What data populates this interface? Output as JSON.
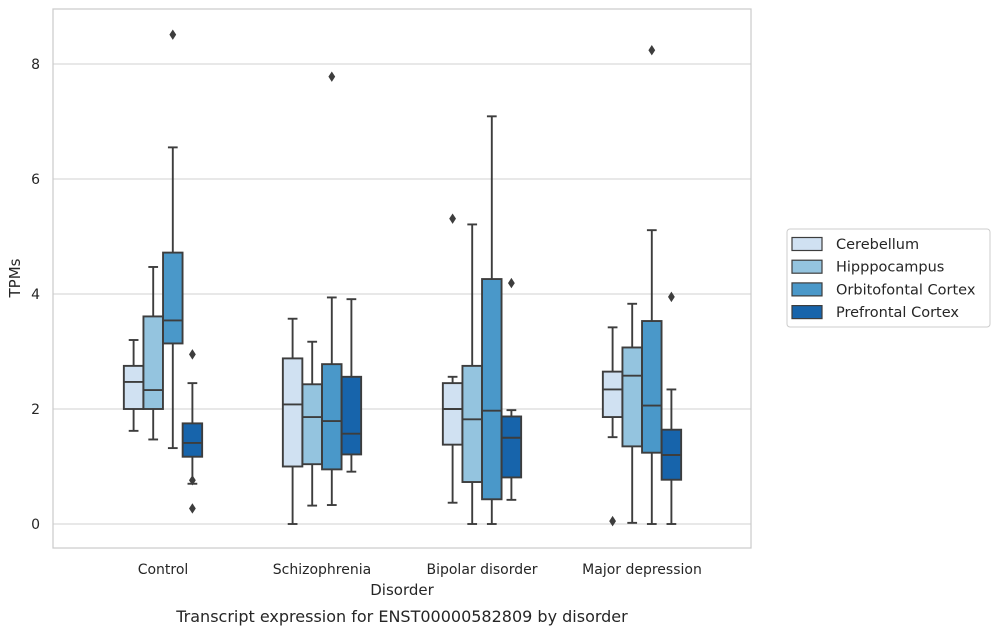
{
  "chart_data": {
    "type": "box",
    "xlabel": "Disorder",
    "ylabel": "TPMs",
    "caption": "Transcript expression for ENST00000582809 by disorder",
    "ylim": [
      -0.4,
      8.95
    ],
    "yticks": [
      0,
      2,
      4,
      6,
      8
    ],
    "categories": [
      "Control",
      "Schizophrenia",
      "Bipolar disorder",
      "Major depression"
    ],
    "grid": "horizontal",
    "legend_position": "right",
    "series": [
      {
        "name": "Cerebellum",
        "color": "#d0e1f2",
        "boxes": [
          {
            "whislo": 1.62,
            "q1": 2.0,
            "med": 2.47,
            "q3": 2.75,
            "whishi": 3.2,
            "fliers": []
          },
          {
            "whislo": 0.0,
            "q1": 1.0,
            "med": 2.08,
            "q3": 2.88,
            "whishi": 3.57,
            "fliers": []
          },
          {
            "whislo": 0.37,
            "q1": 1.38,
            "med": 2.0,
            "q3": 2.45,
            "whishi": 2.56,
            "fliers": [
              5.31
            ]
          },
          {
            "whislo": 1.51,
            "q1": 1.86,
            "med": 2.34,
            "q3": 2.65,
            "whishi": 3.42,
            "fliers": [
              0.05
            ]
          }
        ]
      },
      {
        "name": "Hipppocampus",
        "color": "#94c4df",
        "boxes": [
          {
            "whislo": 1.47,
            "q1": 2.0,
            "med": 2.33,
            "q3": 3.61,
            "whishi": 4.47,
            "fliers": []
          },
          {
            "whislo": 0.32,
            "q1": 1.04,
            "med": 1.86,
            "q3": 2.43,
            "whishi": 3.17,
            "fliers": []
          },
          {
            "whislo": 0.0,
            "q1": 0.73,
            "med": 1.82,
            "q3": 2.75,
            "whishi": 5.21,
            "fliers": []
          },
          {
            "whislo": 0.02,
            "q1": 1.35,
            "med": 2.58,
            "q3": 3.07,
            "whishi": 3.83,
            "fliers": []
          }
        ]
      },
      {
        "name": "Orbitofontal Cortex",
        "color": "#4a98c9",
        "boxes": [
          {
            "whislo": 1.32,
            "q1": 3.14,
            "med": 3.54,
            "q3": 4.72,
            "whishi": 6.55,
            "fliers": [
              8.51
            ]
          },
          {
            "whislo": 0.33,
            "q1": 0.95,
            "med": 1.79,
            "q3": 2.78,
            "whishi": 3.94,
            "fliers": [
              7.78
            ]
          },
          {
            "whislo": 0.0,
            "q1": 0.43,
            "med": 1.97,
            "q3": 4.26,
            "whishi": 7.09,
            "fliers": []
          },
          {
            "whislo": 0.0,
            "q1": 1.24,
            "med": 2.06,
            "q3": 3.53,
            "whishi": 5.11,
            "fliers": [
              8.24
            ]
          }
        ]
      },
      {
        "name": "Prefrontal Cortex",
        "color": "#1764ab",
        "boxes": [
          {
            "whislo": 0.7,
            "q1": 1.17,
            "med": 1.41,
            "q3": 1.75,
            "whishi": 2.45,
            "fliers": [
              2.95,
              0.76,
              0.27
            ]
          },
          {
            "whislo": 0.91,
            "q1": 1.21,
            "med": 1.57,
            "q3": 2.56,
            "whishi": 3.91,
            "fliers": []
          },
          {
            "whislo": 0.42,
            "q1": 0.81,
            "med": 1.5,
            "q3": 1.87,
            "whishi": 1.98,
            "fliers": [
              4.19
            ]
          },
          {
            "whislo": 0.0,
            "q1": 0.77,
            "med": 1.2,
            "q3": 1.64,
            "whishi": 2.34,
            "fliers": [
              3.95
            ]
          }
        ]
      }
    ]
  }
}
